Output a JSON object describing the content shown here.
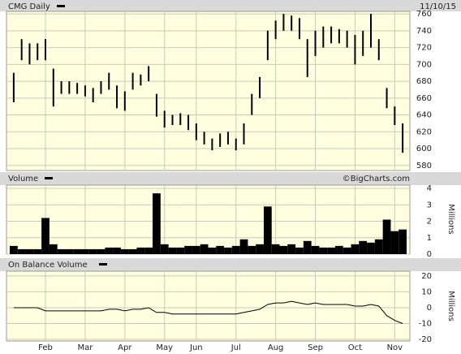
{
  "chart_data": [
    {
      "type": "ohlc",
      "title": "CMG Daily",
      "date_label": "11/10/15",
      "high": [
        690,
        730,
        725,
        725,
        730,
        695,
        680,
        680,
        678,
        675,
        672,
        680,
        690,
        675,
        668,
        690,
        688,
        698,
        665,
        645,
        640,
        642,
        640,
        630,
        620,
        612,
        618,
        620,
        612,
        630,
        665,
        685,
        740,
        752,
        760,
        758,
        755,
        730,
        740,
        745,
        745,
        742,
        740,
        735,
        740,
        760,
        730,
        672,
        650,
        630
      ],
      "low": [
        655,
        705,
        700,
        705,
        705,
        650,
        665,
        665,
        665,
        662,
        655,
        665,
        670,
        648,
        645,
        670,
        675,
        680,
        638,
        625,
        628,
        628,
        622,
        610,
        605,
        598,
        602,
        605,
        598,
        605,
        640,
        660,
        705,
        730,
        740,
        740,
        730,
        685,
        710,
        720,
        725,
        725,
        720,
        700,
        710,
        720,
        705,
        648,
        628,
        595
      ],
      "color": "#000000",
      "ylim": [
        574,
        763
      ],
      "yticks": [
        580,
        600,
        620,
        640,
        660,
        680,
        700,
        720,
        740,
        760
      ],
      "grid": true
    },
    {
      "type": "bar",
      "title": "Volume",
      "source": "©BigCharts.com",
      "y_label": "Millions",
      "values": [
        0.5,
        0.3,
        0.3,
        0.3,
        2.2,
        0.6,
        0.3,
        0.3,
        0.3,
        0.3,
        0.3,
        0.3,
        0.4,
        0.4,
        0.3,
        0.3,
        0.4,
        0.4,
        3.7,
        0.6,
        0.4,
        0.4,
        0.5,
        0.5,
        0.6,
        0.4,
        0.5,
        0.4,
        0.5,
        0.9,
        0.5,
        0.6,
        2.9,
        0.6,
        0.5,
        0.6,
        0.4,
        0.8,
        0.5,
        0.4,
        0.4,
        0.5,
        0.4,
        0.6,
        0.8,
        0.7,
        0.9,
        2.1,
        1.4,
        1.5
      ],
      "color": "#000000",
      "ylim": [
        0,
        4.2
      ],
      "yticks": [
        0,
        1,
        2,
        3,
        4
      ],
      "grid": true
    },
    {
      "type": "line",
      "title": "On Balance Volume",
      "y_label": "Millions",
      "categories": [
        null,
        null,
        null,
        null,
        "Feb",
        null,
        null,
        null,
        null,
        "Mar",
        null,
        null,
        null,
        null,
        "Apr",
        null,
        null,
        null,
        null,
        "May",
        null,
        null,
        null,
        "Jun",
        null,
        null,
        null,
        null,
        "Jul",
        null,
        null,
        null,
        null,
        "Aug",
        null,
        null,
        null,
        null,
        "Sep",
        null,
        null,
        null,
        null,
        "Oct",
        null,
        null,
        null,
        null,
        "Nov",
        null
      ],
      "values": [
        0,
        0,
        0,
        0,
        -2,
        -2,
        -2,
        -2,
        -2,
        -2,
        -2,
        -2,
        -1,
        -1,
        -2,
        -1,
        -1,
        0,
        -3,
        -3,
        -4,
        -4,
        -4,
        -4,
        -4,
        -4,
        -4,
        -4,
        -4,
        -3,
        -2,
        -1,
        2,
        3,
        3,
        4,
        3,
        2,
        3,
        2,
        2,
        2,
        2,
        1,
        1,
        2,
        1,
        -5,
        -8,
        -10
      ],
      "color": "#000000",
      "ylim": [
        -21,
        23
      ],
      "yticks": [
        -20,
        -10,
        0,
        10,
        20
      ],
      "grid": true
    }
  ]
}
